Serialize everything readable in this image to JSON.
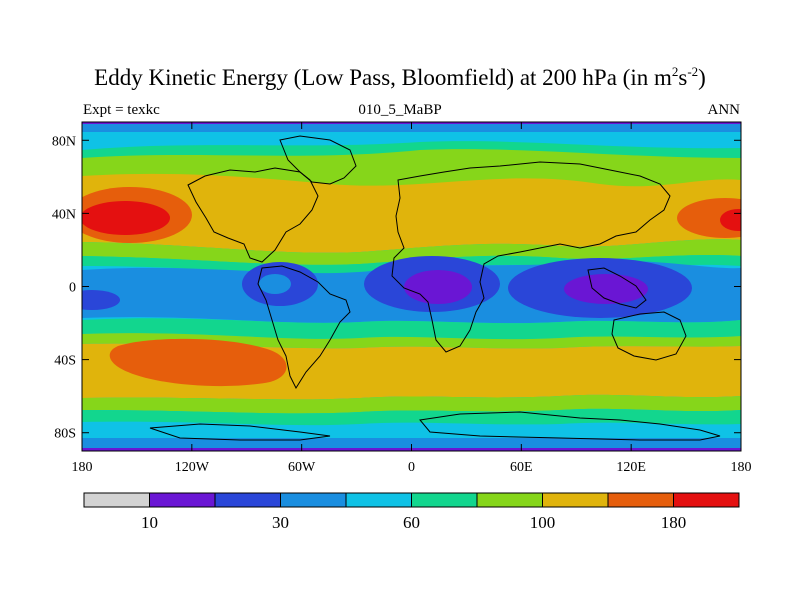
{
  "title": {
    "main": "Eddy Kinetic Energy (Low Pass, Bloomfield) at 200 hPa (in m",
    "sup1": "2",
    "mid": "s",
    "sup2": "-2",
    "end": ")"
  },
  "subtitle": {
    "left": "Expt = texkc",
    "center": "010_5_MaBP",
    "right": "ANN"
  },
  "map": {
    "lat_ticks": [
      "80N",
      "40N",
      "0",
      "40S",
      "80S"
    ],
    "lat_values": [
      80,
      40,
      0,
      -40,
      -80
    ],
    "lon_ticks": [
      "180",
      "120W",
      "60W",
      "0",
      "60E",
      "120E",
      "180"
    ],
    "lon_values": [
      -180,
      -120,
      -60,
      0,
      60,
      120,
      180
    ],
    "extent": {
      "lon": [
        -180,
        180
      ],
      "lat": [
        -90,
        90
      ]
    }
  },
  "colorbar": {
    "colors": [
      "#d3d3d3",
      "#6a16d4",
      "#2a46d8",
      "#1a8ee0",
      "#0fc2e6",
      "#12d68e",
      "#86d61a",
      "#e0b40c",
      "#e65e0c",
      "#e41010"
    ],
    "labels": [
      "10",
      "30",
      "60",
      "100",
      "180"
    ]
  },
  "chart_data": {
    "type": "heatmap",
    "variable": "Eddy Kinetic Energy (Low Pass, Bloomfield)",
    "level": "200 hPa",
    "units": "m2s-2",
    "experiment": "texkc",
    "case": "010_5_MaBP",
    "season": "ANN",
    "xlim": [
      -180,
      180
    ],
    "ylim": [
      -90,
      90
    ],
    "contour_levels_labeled": [
      10,
      30,
      60,
      100,
      180
    ],
    "color_index_scale": "0 = lowest (grey) ... 9 = highest (red)",
    "features": [
      {
        "region": "North Pacific storm track",
        "lon": [
          -180,
          -130
        ],
        "lat": [
          25,
          50
        ],
        "level_index": 9
      },
      {
        "region": "North Pacific jet (east edge)",
        "lon": [
          150,
          180
        ],
        "lat": [
          30,
          45
        ],
        "level_index": 9
      },
      {
        "region": "South Pacific storm track",
        "lon": [
          -160,
          -80
        ],
        "lat": [
          -60,
          -30
        ],
        "level_index": 8
      },
      {
        "region": "Tropical Indian Ocean / Maritime Continent minimum",
        "lon": [
          90,
          130
        ],
        "lat": [
          -10,
          10
        ],
        "level_index": 1
      },
      {
        "region": "Tropical Africa minimum",
        "lon": [
          -10,
          40
        ],
        "lat": [
          -10,
          10
        ],
        "level_index": 1
      },
      {
        "region": "Tropical South America minimum",
        "lon": [
          -80,
          -60
        ],
        "lat": [
          -10,
          5
        ],
        "level_index": 2
      },
      {
        "region": "Midlatitude belts",
        "lat_band": "30-60 N/S",
        "level_index": 7
      },
      {
        "region": "Polar regions",
        "lat_band": "> 70 N/S",
        "level_index": 4
      }
    ]
  }
}
